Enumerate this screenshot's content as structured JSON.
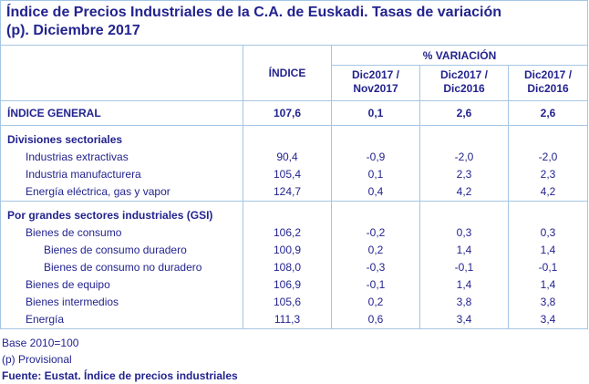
{
  "colors": {
    "text_navy": "#23238F",
    "grid_blue": "#A5C6E3",
    "background": "#FFFFFF"
  },
  "title": {
    "line1": "Índice de Precios Industriales de la C.A. de Euskadi. Tasas de variación",
    "line2": "(p). Diciembre 2017"
  },
  "header": {
    "indice": "ÍNDICE",
    "variation_group": "% VARIACIÓN",
    "periods": [
      "Dic2017 / Nov2017",
      "Dic2017 / Dic2016",
      "Dic2017 / Dic2016"
    ]
  },
  "chart_data": {
    "type": "table",
    "title": "Índice de Precios Industriales de la C.A. de Euskadi. Tasas de variación (p). Diciembre 2017",
    "column_group_header": "% VARIACIÓN",
    "columns": [
      "",
      "ÍNDICE",
      "Dic2017 / Nov2017",
      "Dic2017 / Dic2016",
      "Dic2017 / Dic2016"
    ],
    "rows": [
      {
        "label": "ÍNDICE GENERAL",
        "level": 0,
        "style": "general",
        "cells": [
          "107,6",
          "0,1",
          "2,6",
          "2,6"
        ]
      },
      {
        "label": "Divisiones sectoriales",
        "level": 0,
        "style": "section",
        "cells": [
          "",
          "",
          "",
          ""
        ]
      },
      {
        "label": "Industrias extractivas",
        "level": 1,
        "style": "item",
        "cells": [
          "90,4",
          "-0,9",
          "-2,0",
          "-2,0"
        ]
      },
      {
        "label": "Industria manufacturera",
        "level": 1,
        "style": "item",
        "cells": [
          "105,4",
          "0,1",
          "2,3",
          "2,3"
        ]
      },
      {
        "label": "Energía eléctrica, gas y vapor",
        "level": 1,
        "style": "item",
        "cells": [
          "124,7",
          "0,4",
          "4,2",
          "4,2"
        ]
      },
      {
        "label": "Por grandes sectores industriales (GSI)",
        "level": 0,
        "style": "section",
        "cells": [
          "",
          "",
          "",
          ""
        ]
      },
      {
        "label": "Bienes de consumo",
        "level": 1,
        "style": "item",
        "cells": [
          "106,2",
          "-0,2",
          "0,3",
          "0,3"
        ]
      },
      {
        "label": "Bienes de consumo duradero",
        "level": 2,
        "style": "item",
        "cells": [
          "100,9",
          "0,2",
          "1,4",
          "1,4"
        ]
      },
      {
        "label": "Bienes de consumo no duradero",
        "level": 2,
        "style": "item",
        "cells": [
          "108,0",
          "-0,3",
          "-0,1",
          "-0,1"
        ]
      },
      {
        "label": "Bienes de equipo",
        "level": 1,
        "style": "item",
        "cells": [
          "106,9",
          "-0,1",
          "1,4",
          "1,4"
        ]
      },
      {
        "label": "Bienes intermedios",
        "level": 1,
        "style": "item",
        "cells": [
          "105,6",
          "0,2",
          "3,8",
          "3,8"
        ]
      },
      {
        "label": "Energía",
        "level": 1,
        "style": "item",
        "cells": [
          "111,3",
          "0,6",
          "3,4",
          "3,4"
        ]
      }
    ]
  },
  "footnotes": {
    "base": "Base 2010=100",
    "provisional": "(p) Provisional",
    "source": "Fuente: Eustat. Índice de precios industriales"
  }
}
